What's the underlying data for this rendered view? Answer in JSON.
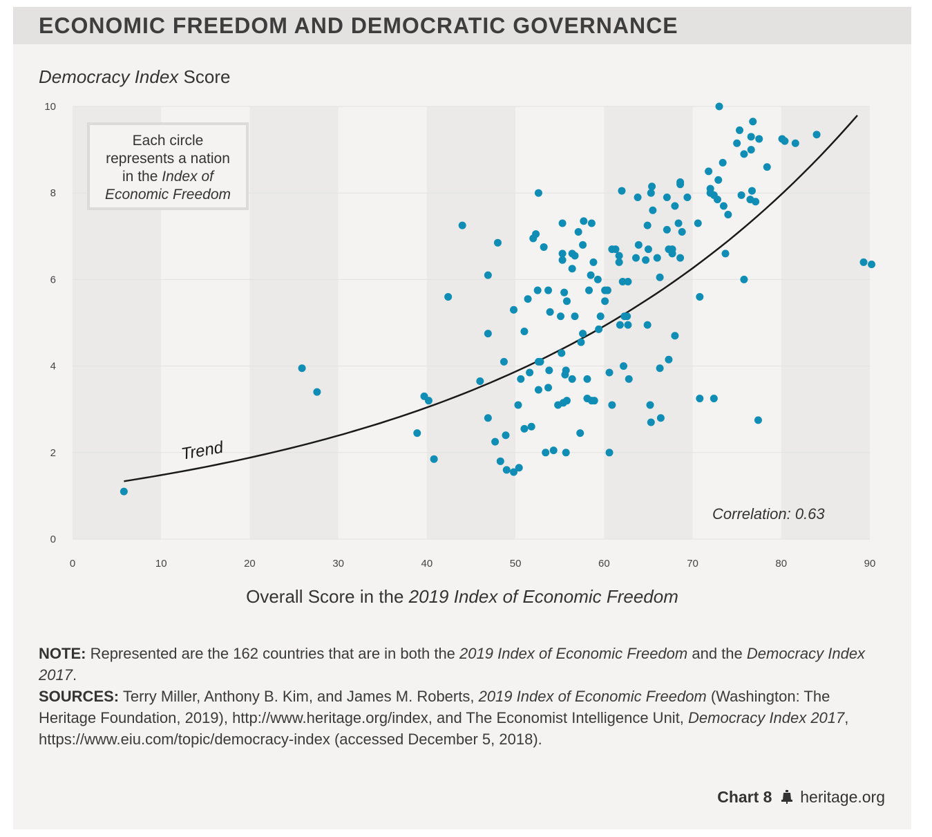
{
  "title": "ECONOMIC FREEDOM AND DEMOCRATIC GOVERNANCE",
  "y_title": {
    "italic": "Democracy Index",
    "plain": " Score"
  },
  "x_title": {
    "plain": "Overall Score in the ",
    "italic": "2019 Index of Economic Freedom"
  },
  "legend_box": {
    "line1": "Each circle",
    "line2": "represents a nation",
    "line3_plain": "in the ",
    "line3_italic": "Index of",
    "line4_italic": "Economic Freedom"
  },
  "chart_data": {
    "type": "scatter",
    "xlabel": "Overall Score in the 2019 Index of Economic Freedom",
    "ylabel": "Democracy Index Score",
    "xlim": [
      0,
      90
    ],
    "ylim": [
      0,
      10
    ],
    "xticks": [
      0,
      10,
      20,
      30,
      40,
      50,
      60,
      70,
      80,
      90
    ],
    "yticks": [
      0,
      2,
      4,
      6,
      8,
      10
    ],
    "points": [
      [
        5.8,
        1.1
      ],
      [
        25.9,
        3.95
      ],
      [
        27.6,
        3.4
      ],
      [
        38.9,
        2.45
      ],
      [
        39.7,
        3.3
      ],
      [
        40.2,
        3.2
      ],
      [
        40.8,
        1.85
      ],
      [
        42.4,
        5.6
      ],
      [
        44.0,
        7.25
      ],
      [
        46.0,
        3.65
      ],
      [
        46.9,
        6.1
      ],
      [
        46.9,
        4.75
      ],
      [
        46.9,
        2.8
      ],
      [
        47.7,
        2.25
      ],
      [
        48.0,
        6.85
      ],
      [
        48.3,
        1.8
      ],
      [
        48.7,
        4.1
      ],
      [
        48.9,
        2.4
      ],
      [
        49.0,
        1.6
      ],
      [
        49.8,
        1.55
      ],
      [
        49.8,
        5.3
      ],
      [
        50.4,
        1.65
      ],
      [
        50.3,
        3.1
      ],
      [
        50.6,
        3.7
      ],
      [
        51.0,
        4.8
      ],
      [
        51.0,
        2.55
      ],
      [
        51.4,
        5.55
      ],
      [
        51.6,
        3.85
      ],
      [
        51.8,
        2.6
      ],
      [
        52.0,
        6.95
      ],
      [
        52.3,
        7.05
      ],
      [
        52.5,
        5.75
      ],
      [
        52.6,
        4.1
      ],
      [
        52.6,
        3.45
      ],
      [
        52.6,
        8.0
      ],
      [
        52.8,
        4.1
      ],
      [
        53.2,
        6.75
      ],
      [
        53.4,
        2.0
      ],
      [
        53.7,
        3.5
      ],
      [
        53.7,
        5.75
      ],
      [
        53.9,
        5.25
      ],
      [
        53.8,
        3.9
      ],
      [
        54.3,
        2.05
      ],
      [
        54.8,
        3.1
      ],
      [
        55.1,
        5.15
      ],
      [
        55.2,
        4.3
      ],
      [
        55.3,
        7.3
      ],
      [
        55.3,
        6.6
      ],
      [
        55.3,
        6.45
      ],
      [
        55.5,
        5.7
      ],
      [
        55.6,
        3.8
      ],
      [
        55.4,
        3.15
      ],
      [
        55.7,
        3.9
      ],
      [
        55.8,
        5.5
      ],
      [
        55.8,
        3.2
      ],
      [
        55.7,
        2.0
      ],
      [
        56.4,
        6.6
      ],
      [
        56.4,
        6.25
      ],
      [
        56.7,
        6.55
      ],
      [
        56.4,
        3.7
      ],
      [
        56.7,
        5.15
      ],
      [
        57.1,
        7.1
      ],
      [
        57.3,
        2.45
      ],
      [
        57.4,
        4.55
      ],
      [
        57.6,
        4.75
      ],
      [
        57.6,
        6.8
      ],
      [
        57.7,
        7.35
      ],
      [
        58.1,
        3.7
      ],
      [
        58.1,
        3.25
      ],
      [
        58.3,
        5.75
      ],
      [
        58.5,
        6.1
      ],
      [
        58.6,
        7.3
      ],
      [
        58.8,
        6.4
      ],
      [
        58.6,
        3.2
      ],
      [
        58.9,
        3.2
      ],
      [
        59.3,
        6.0
      ],
      [
        59.4,
        4.85
      ],
      [
        59.6,
        5.15
      ],
      [
        60.1,
        5.5
      ],
      [
        60.1,
        5.75
      ],
      [
        60.4,
        5.75
      ],
      [
        60.6,
        3.85
      ],
      [
        60.6,
        2.0
      ],
      [
        60.9,
        6.7
      ],
      [
        60.9,
        3.1
      ],
      [
        61.3,
        6.7
      ],
      [
        61.7,
        6.55
      ],
      [
        61.7,
        6.4
      ],
      [
        61.8,
        4.95
      ],
      [
        62.0,
        8.05
      ],
      [
        62.1,
        5.95
      ],
      [
        62.2,
        4.0
      ],
      [
        62.3,
        5.15
      ],
      [
        62.6,
        5.15
      ],
      [
        62.7,
        5.95
      ],
      [
        62.7,
        4.95
      ],
      [
        62.8,
        3.7
      ],
      [
        63.6,
        6.5
      ],
      [
        63.8,
        7.9
      ],
      [
        63.9,
        6.8
      ],
      [
        64.7,
        6.45
      ],
      [
        64.9,
        7.25
      ],
      [
        65.0,
        6.7
      ],
      [
        64.9,
        4.95
      ],
      [
        65.2,
        3.1
      ],
      [
        65.3,
        2.7
      ],
      [
        65.3,
        8.0
      ],
      [
        65.4,
        8.15
      ],
      [
        65.5,
        7.6
      ],
      [
        66.0,
        6.5
      ],
      [
        66.3,
        6.05
      ],
      [
        66.3,
        3.95
      ],
      [
        66.4,
        2.8
      ],
      [
        67.1,
        7.9
      ],
      [
        67.1,
        7.15
      ],
      [
        67.3,
        6.7
      ],
      [
        67.3,
        4.15
      ],
      [
        67.7,
        6.7
      ],
      [
        67.7,
        6.6
      ],
      [
        68.0,
        7.7
      ],
      [
        68.0,
        4.7
      ],
      [
        68.4,
        7.3
      ],
      [
        68.6,
        8.25
      ],
      [
        68.6,
        8.2
      ],
      [
        68.6,
        6.5
      ],
      [
        68.8,
        7.1
      ],
      [
        69.4,
        7.9
      ],
      [
        70.6,
        7.3
      ],
      [
        70.8,
        5.6
      ],
      [
        70.8,
        3.25
      ],
      [
        71.8,
        8.5
      ],
      [
        72.0,
        8.1
      ],
      [
        72.0,
        8.0
      ],
      [
        72.4,
        7.95
      ],
      [
        72.4,
        3.25
      ],
      [
        72.8,
        7.85
      ],
      [
        72.9,
        8.3
      ],
      [
        73.0,
        10.0
      ],
      [
        73.4,
        8.7
      ],
      [
        73.5,
        7.7
      ],
      [
        73.7,
        6.6
      ],
      [
        74.0,
        7.5
      ],
      [
        75.0,
        9.15
      ],
      [
        75.3,
        9.45
      ],
      [
        75.5,
        7.95
      ],
      [
        75.8,
        8.9
      ],
      [
        75.8,
        6.0
      ],
      [
        76.5,
        7.85
      ],
      [
        76.6,
        9.0
      ],
      [
        76.6,
        9.3
      ],
      [
        76.7,
        8.05
      ],
      [
        76.8,
        9.65
      ],
      [
        77.1,
        7.8
      ],
      [
        77.4,
        2.75
      ],
      [
        77.5,
        9.25
      ],
      [
        78.4,
        8.6
      ],
      [
        80.1,
        9.25
      ],
      [
        80.4,
        9.2
      ],
      [
        81.6,
        9.15
      ],
      [
        84.0,
        9.35
      ],
      [
        89.3,
        6.4
      ],
      [
        90.2,
        6.35
      ]
    ],
    "trend": {
      "label": "Trend",
      "type": "exponential",
      "a": 1.163,
      "b": 0.02405,
      "x_range": [
        5.8,
        88.6
      ]
    },
    "correlation_label": "Correlation: 0.63",
    "colors": {
      "point": "#0f8db4",
      "trend": "#1a1a1a",
      "band": "#ebeae8",
      "plot_bg": "#f4f3f2",
      "grid": "#e2e1df"
    }
  },
  "note": {
    "label": "NOTE:",
    "text1": " Represented are the 162 countries that are in both the ",
    "italic1": "2019 Index of Economic Freedom",
    "text2": " and the ",
    "italic2": "Democracy Index 2017",
    "text3": "."
  },
  "sources": {
    "label": "SOURCES:",
    "text1": " Terry Miller, Anthony B. Kim, and James M. Roberts, ",
    "italic1": "2019 Index of Economic Freedom",
    "text2": " (Washington: The Heritage Foundation, 2019), http://www.heritage.org/index, and The Economist Intelligence Unit, ",
    "italic2": "Democracy Index 2017",
    "text3": ", https://www.eiu.com/topic/democracy-index (accessed December 5, 2018)."
  },
  "footer": {
    "chart_label": "Chart 8",
    "site": "heritage.org"
  }
}
